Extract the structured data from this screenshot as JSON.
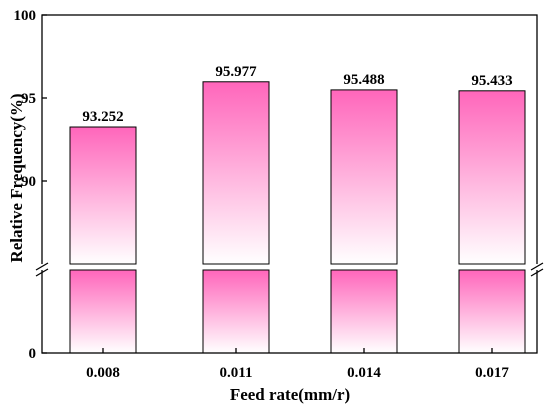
{
  "chart_data": {
    "type": "bar",
    "categories": [
      "0.008",
      "0.011",
      "0.014",
      "0.017"
    ],
    "values": [
      93.252,
      95.977,
      95.488,
      95.433
    ],
    "value_labels": [
      "93.252",
      "95.977",
      "95.488",
      "95.433"
    ],
    "xlabel": "Feed rate(mm/r)",
    "ylabel": "Relative Frequency(%)",
    "y_axis_break": true,
    "ylim_lower_segment": [
      0,
      4
    ],
    "ylim_upper_segment": [
      85,
      100
    ],
    "yticks": [
      0,
      90,
      95,
      100
    ],
    "ytick_labels": [
      "0",
      "90",
      "95",
      "100"
    ],
    "grid": false,
    "bar_gradient": {
      "top": "#ff66bb",
      "bottom": "#ffffff"
    },
    "bar_outline_color": "#000000"
  }
}
